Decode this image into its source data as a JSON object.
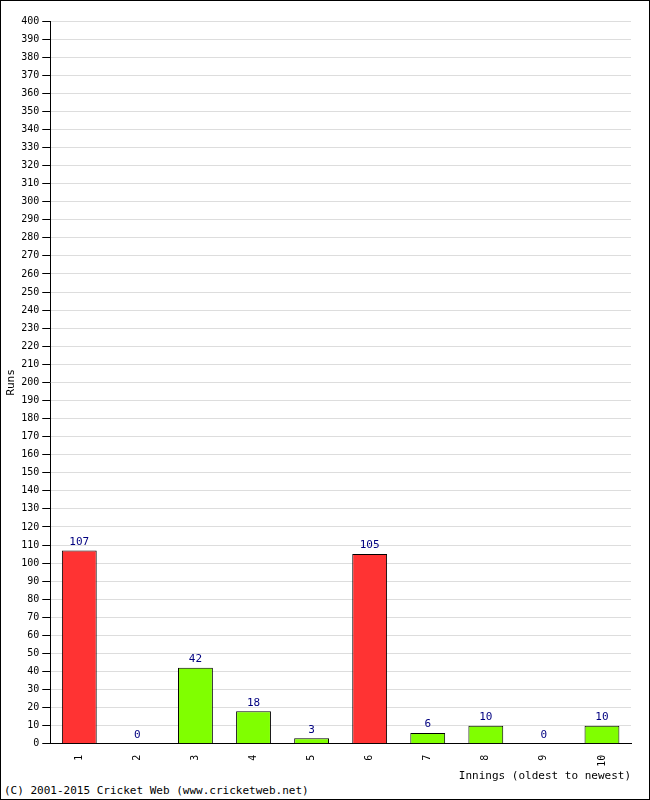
{
  "chart_data": {
    "type": "bar",
    "categories": [
      "1",
      "2",
      "3",
      "4",
      "5",
      "6",
      "7",
      "8",
      "9",
      "10"
    ],
    "values": [
      107,
      0,
      42,
      18,
      3,
      105,
      6,
      10,
      0,
      10
    ],
    "colors": [
      "#ff3333",
      "#80ff00",
      "#80ff00",
      "#80ff00",
      "#80ff00",
      "#ff3333",
      "#80ff00",
      "#80ff00",
      "#80ff00",
      "#80ff00"
    ],
    "x_label": "Innings (oldest to newest)",
    "y_label": "Runs",
    "annotations": [
      "(C) 2001-2015 Cricket Web (www.cricketweb.net)"
    ],
    "ylim": [
      0,
      400
    ],
    "yticks": [
      0,
      10,
      20,
      30,
      40,
      50,
      60,
      70,
      80,
      90,
      100,
      110,
      120,
      130,
      140,
      150,
      160,
      170,
      180,
      190,
      200,
      210,
      220,
      230,
      240,
      250,
      260,
      270,
      280,
      290,
      300,
      310,
      320,
      330,
      340,
      350,
      360,
      370,
      380,
      390,
      400
    ],
    "grid": true,
    "data_labels": true
  }
}
